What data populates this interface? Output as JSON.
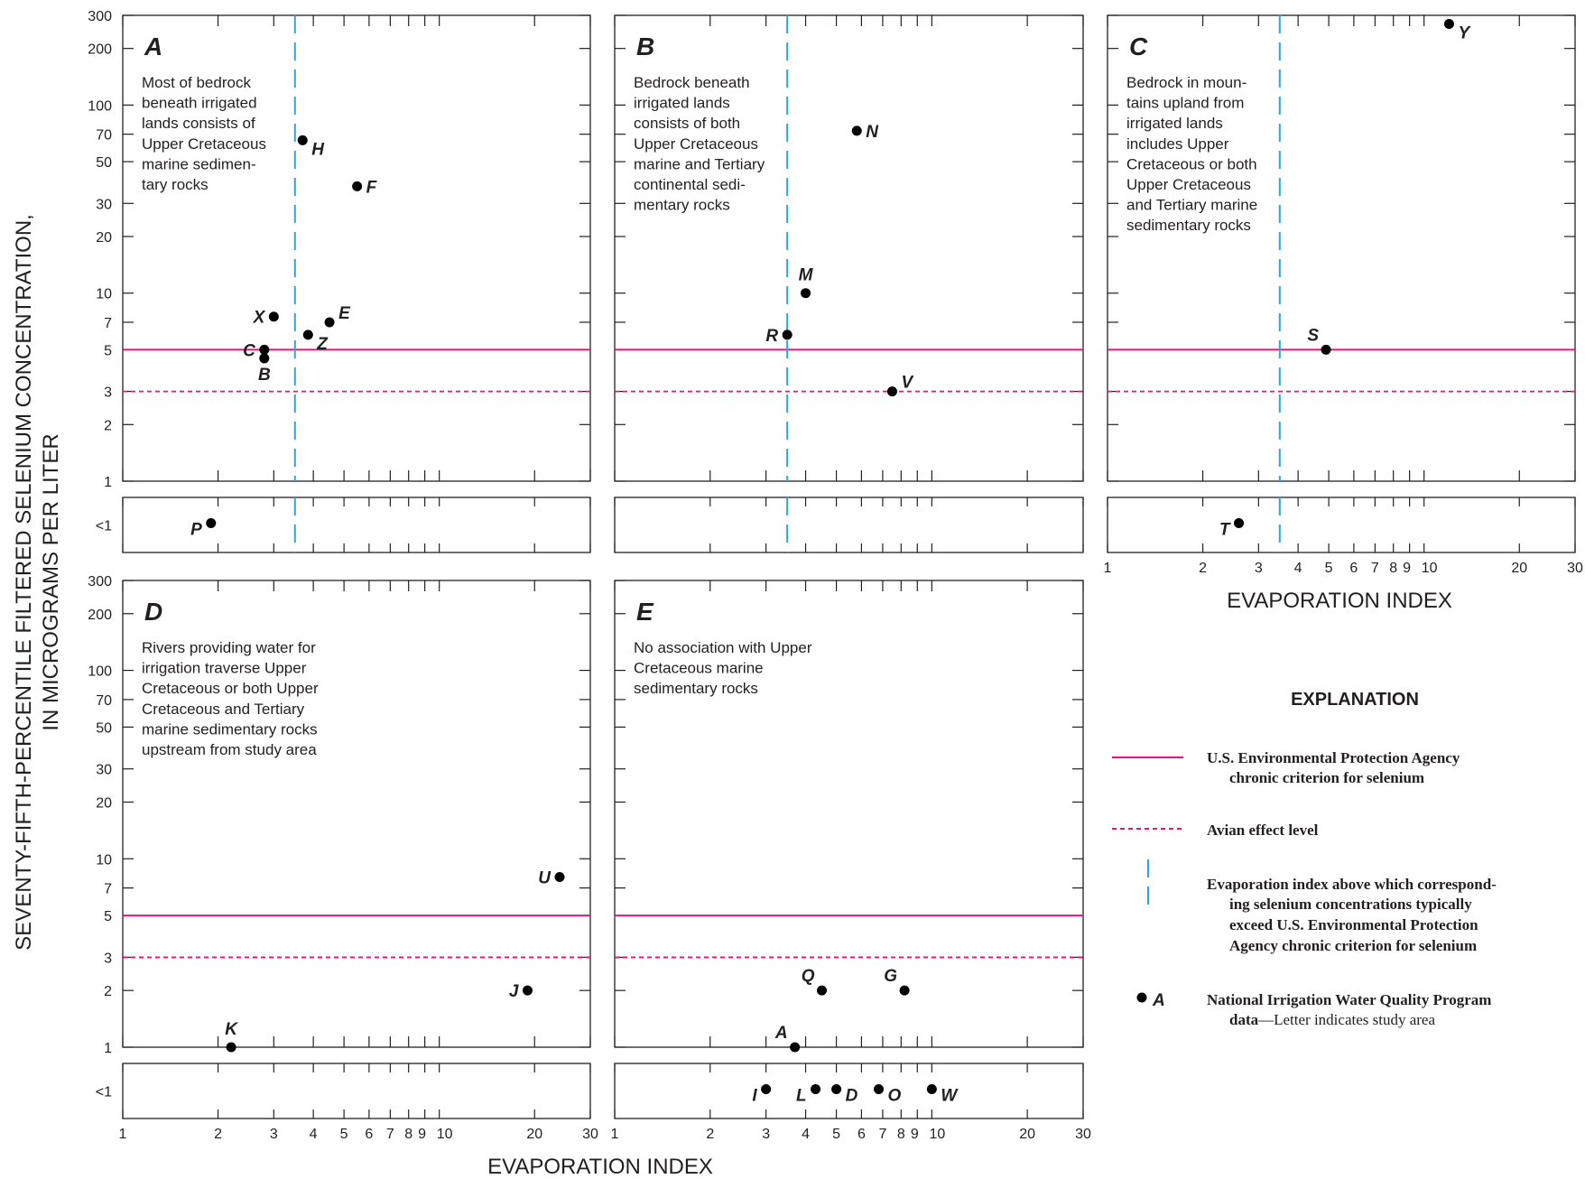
{
  "chart_data": {
    "type": "scatter",
    "x_scale": "log",
    "y_scale": "log",
    "xlabel": "EVAPORATION INDEX",
    "ylabel_line1": "SEVENTY-FIFTH-PERCENTILE FILTERED SELENIUM CONCENTRATION,",
    "ylabel_line2": "IN MICROGRAMS PER LITER",
    "xlim": [
      1,
      30
    ],
    "ylim": [
      1,
      300
    ],
    "x_ticks": [
      1,
      2,
      3,
      4,
      5,
      6,
      7,
      8,
      9,
      10,
      20,
      30
    ],
    "x_tick_labels": [
      "1",
      "2",
      "3",
      "4",
      "5",
      "6",
      "7",
      "8",
      "9",
      "10",
      "20",
      "30"
    ],
    "y_ticks": [
      1,
      2,
      3,
      5,
      7,
      10,
      20,
      30,
      50,
      70,
      100,
      200,
      300
    ],
    "y_tick_labels": [
      "1",
      "2",
      "3",
      "5",
      "7",
      "10",
      "20",
      "30",
      "50",
      "70",
      "100",
      "200",
      "300"
    ],
    "below_label": "<1",
    "reference_lines": {
      "epa_criterion_y": 5,
      "avian_effect_y": 3,
      "evaporation_threshold_x": 3.5,
      "epa_color": "#e8147a",
      "avian_color": "#e8147a",
      "threshold_color": "#29a8e0"
    },
    "panels": [
      {
        "id": "A",
        "letter": "A",
        "description": [
          "Most of bedrock",
          "beneath irrigated",
          "lands consists of",
          "Upper Cretaceous",
          "marine sedimen-",
          "tary rocks"
        ],
        "show_threshold": true,
        "points": [
          {
            "label": "H",
            "x": 3.7,
            "y": 65,
            "label_pos": "right-below"
          },
          {
            "label": "F",
            "x": 5.5,
            "y": 37,
            "label_pos": "right"
          },
          {
            "label": "X",
            "x": 3.0,
            "y": 7.5,
            "label_pos": "left"
          },
          {
            "label": "E",
            "x": 4.5,
            "y": 7.0,
            "label_pos": "right-above"
          },
          {
            "label": "Z",
            "x": 3.85,
            "y": 6.0,
            "label_pos": "right-below"
          },
          {
            "label": "C",
            "x": 2.8,
            "y": 5.0,
            "label_pos": "left"
          },
          {
            "label": "B",
            "x": 2.8,
            "y": 4.5,
            "label_pos": "below"
          }
        ],
        "below_points": [
          {
            "label": "P",
            "x": 1.9,
            "label_pos": "left"
          }
        ]
      },
      {
        "id": "B",
        "letter": "B",
        "description": [
          "Bedrock beneath",
          "irrigated lands",
          "consists of both",
          "Upper Cretaceous",
          "marine and Tertiary",
          "continental sedi-",
          "mentary rocks"
        ],
        "show_threshold": true,
        "points": [
          {
            "label": "N",
            "x": 5.8,
            "y": 73,
            "label_pos": "right"
          },
          {
            "label": "M",
            "x": 4.0,
            "y": 10,
            "label_pos": "above"
          },
          {
            "label": "R",
            "x": 3.5,
            "y": 6.0,
            "label_pos": "left"
          },
          {
            "label": "V",
            "x": 7.5,
            "y": 3.0,
            "label_pos": "right-above"
          }
        ],
        "below_points": []
      },
      {
        "id": "C",
        "letter": "C",
        "description": [
          "Bedrock in moun-",
          "tains upland from",
          "irrigated lands",
          "includes Upper",
          "Cretaceous or both",
          "Upper Cretaceous",
          "and Tertiary marine",
          "sedimentary rocks"
        ],
        "show_threshold": true,
        "points": [
          {
            "label": "Y",
            "x": 12.0,
            "y": 270,
            "label_pos": "right-below"
          },
          {
            "label": "S",
            "x": 4.9,
            "y": 5.0,
            "label_pos": "above-left"
          }
        ],
        "below_points": [
          {
            "label": "T",
            "x": 2.6,
            "label_pos": "left"
          }
        ]
      },
      {
        "id": "D",
        "letter": "D",
        "description": [
          "Rivers providing water for",
          "irrigation traverse Upper",
          "Cretaceous or both Upper",
          "Cretaceous and Tertiary",
          "marine sedimentary rocks",
          "upstream from study area"
        ],
        "show_threshold": false,
        "points": [
          {
            "label": "U",
            "x": 24.0,
            "y": 8.0,
            "label_pos": "left"
          },
          {
            "label": "J",
            "x": 19.0,
            "y": 2.0,
            "label_pos": "left"
          },
          {
            "label": "K",
            "x": 2.2,
            "y": 1.0,
            "label_pos": "above"
          }
        ],
        "below_points": []
      },
      {
        "id": "E",
        "letter": "E",
        "description": [
          "No association with Upper",
          "Cretaceous marine",
          "sedimentary rocks"
        ],
        "show_threshold": false,
        "points": [
          {
            "label": "Q",
            "x": 4.5,
            "y": 2.0,
            "label_pos": "above-left"
          },
          {
            "label": "G",
            "x": 8.2,
            "y": 2.0,
            "label_pos": "above-left"
          },
          {
            "label": "A",
            "x": 3.7,
            "y": 1.0,
            "label_pos": "above-left"
          }
        ],
        "below_points": [
          {
            "label": "I",
            "x": 3.0,
            "label_pos": "left"
          },
          {
            "label": "L",
            "x": 4.3,
            "label_pos": "left"
          },
          {
            "label": "D",
            "x": 5.0,
            "label_pos": "right"
          },
          {
            "label": "O",
            "x": 6.8,
            "label_pos": "right"
          },
          {
            "label": "W",
            "x": 10.0,
            "label_pos": "right"
          }
        ]
      }
    ]
  },
  "explanation": {
    "title": "EXPLANATION",
    "epa_line1": "U.S. Environmental Protection Agency",
    "epa_line2": "chronic criterion for selenium",
    "avian": "Avian effect level",
    "threshold_line1": "Evaporation index above which correspond-",
    "threshold_line2": "ing selenium concentrations typically",
    "threshold_line3": "exceed U.S. Environmental Protection",
    "threshold_line4": "Agency chronic criterion for selenium",
    "point_symbol_label": "A",
    "nawqa_line1": "National Irrigation Water Quality Program",
    "nawqa_bold2": "data",
    "nawqa_plain2": "—Letter indicates study area"
  }
}
